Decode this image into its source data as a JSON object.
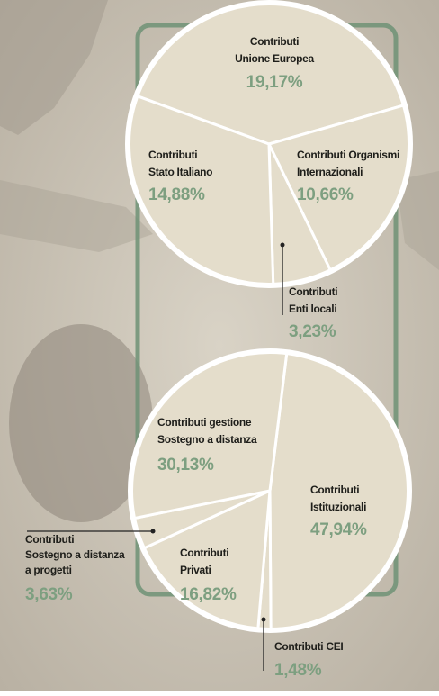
{
  "chart_data": [
    {
      "type": "pie",
      "start_angle": 290,
      "color": "#e4ddcb",
      "labels": [
        [
          "Contributi",
          "Unione Europea"
        ],
        [
          "Contributi Organismi",
          "Internazionali"
        ],
        [
          "Contributi",
          "Enti locali"
        ],
        [
          "Contributi",
          "Stato Italiano"
        ]
      ],
      "values": [
        19.17,
        10.66,
        3.23,
        14.88
      ],
      "value_labels": [
        "19,17%",
        "10,66%",
        "3,23%",
        "14,88%"
      ]
    },
    {
      "type": "pie",
      "start_angle": 7,
      "color": "#e4ddcb",
      "labels": [
        [
          "Contributi",
          "Istituzionali"
        ],
        [
          "Contributi CEI"
        ],
        [
          "Contributi",
          "Privati"
        ],
        [
          "Contributi",
          "Sostegno a distanza",
          "a progetti"
        ],
        [
          "Contributi gestione",
          "Sostegno a distanza"
        ]
      ],
      "values": [
        47.94,
        1.48,
        16.82,
        3.63,
        30.13
      ],
      "value_labels": [
        "47,94%",
        "1,48%",
        "16,82%",
        "3,63%",
        "30,13%"
      ]
    }
  ]
}
